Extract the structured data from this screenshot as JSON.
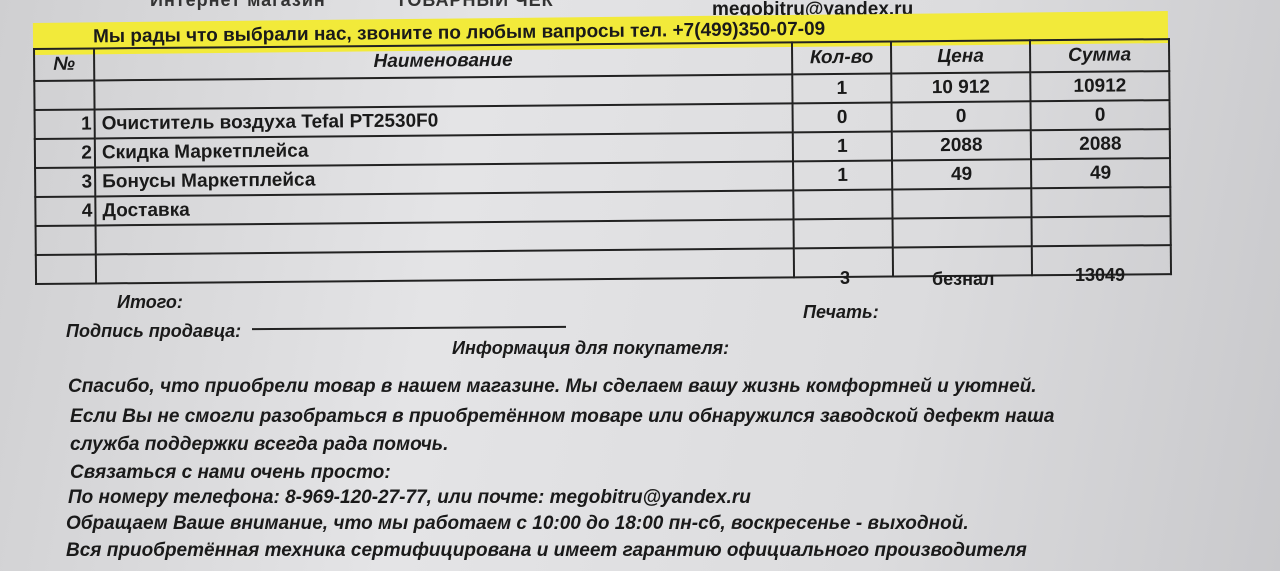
{
  "header": {
    "shop": "Интернет магазин",
    "doc_title": "ТОВАРНЫЙ ЧЕК",
    "contact_banner": "Мы рады что выбрали нас, звоните по любым вапросы  тел. +7(499)350-07-09",
    "email": "megobitru@yandex.ru",
    "banner_color": "#f2ea3a"
  },
  "table": {
    "columns": [
      "№",
      "Наименование",
      "Кол-во",
      "Цена",
      "Сумма"
    ],
    "rows": [
      {
        "n": "",
        "name": "",
        "qty": "1",
        "price": "10 912",
        "sum": "10912"
      },
      {
        "n": "1",
        "name": "Очиститель воздуха Tefal PT2530F0",
        "qty": "0",
        "price": "0",
        "sum": "0"
      },
      {
        "n": "2",
        "name": "Скидка Маркетплейса",
        "qty": "1",
        "price": "2088",
        "sum": "2088"
      },
      {
        "n": "3",
        "name": "Бонусы Маркетплейса",
        "qty": "1",
        "price": "49",
        "sum": "49"
      },
      {
        "n": "4",
        "name": "Доставка",
        "qty": "",
        "price": "",
        "sum": ""
      },
      {
        "n": "",
        "name": "",
        "qty": "",
        "price": "",
        "sum": ""
      },
      {
        "n": "",
        "name": "",
        "qty": "",
        "price": "",
        "sum": ""
      }
    ]
  },
  "totals": {
    "label": "Итого:",
    "qty": "3",
    "payment": "безнал",
    "sum": "13049"
  },
  "signature_label": "Подпись продавца:",
  "stamp_label": "Печать:",
  "info": {
    "title": "Информация для покупателя:",
    "lines": [
      "Спасибо, что приобрели товар в нашем магазине. Мы сделаем вашу жизнь комфортней и уютней.",
      "Если Вы не смогли разобраться в приобретённом товаре или обнаружился заводской дефект наша",
      "служба поддержки всегда рада помочь.",
      "Связаться с нами очень просто:",
      "По номеру телефона: 8-969-120-27-77, или почте: megobitru@yandex.ru",
      "Обращаем Ваше внимание, что мы работаем с 10:00 до 18:00 пн-сб, воскресенье - выходной.",
      "Вся приобретённая техника сертифицирована и имеет гарантию официального производителя"
    ]
  }
}
